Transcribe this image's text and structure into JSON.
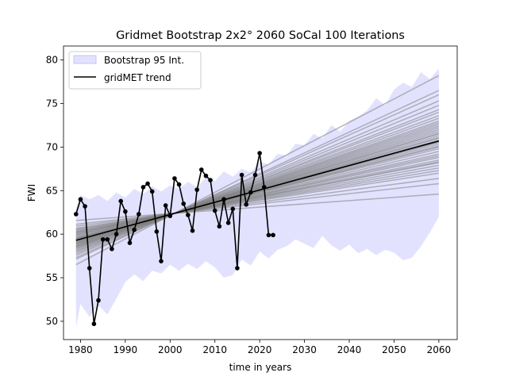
{
  "chart_data": {
    "type": "line",
    "title": "Gridmet Bootstrap 2x2° 2060 SoCal 100 Iterations",
    "xlabel": "time in years",
    "ylabel": "FWI",
    "xlim": [
      1976.2,
      2064.1
    ],
    "ylim": [
      47.9,
      81.6
    ],
    "xticks": [
      1980,
      1990,
      2000,
      2010,
      2020,
      2030,
      2040,
      2050,
      2060
    ],
    "yticks": [
      50,
      55,
      60,
      65,
      70,
      75,
      80
    ],
    "grid": false,
    "legend": {
      "placement": "upper-left",
      "entries": [
        {
          "label": "Bootstrap 95 Int.",
          "kind": "band",
          "color": "#e2e2ff"
        },
        {
          "label": "gridMET trend",
          "kind": "line",
          "color": "#000000"
        }
      ]
    },
    "band": {
      "x": [
        1979,
        1980,
        1982,
        1984,
        1986,
        1988,
        1990,
        1992,
        1994,
        1996,
        1998,
        2000,
        2002,
        2004,
        2006,
        2008,
        2010,
        2012,
        2014,
        2016,
        2018,
        2020,
        2022,
        2024,
        2026,
        2028,
        2030,
        2032,
        2034,
        2036,
        2038,
        2040,
        2042,
        2044,
        2046,
        2048,
        2050,
        2052,
        2054,
        2056,
        2058,
        2060
      ],
      "upper": [
        63.0,
        64.5,
        64.0,
        64.5,
        63.8,
        64.8,
        64.2,
        65.2,
        64.6,
        65.5,
        64.9,
        65.6,
        65.2,
        66.0,
        65.4,
        66.5,
        66.1,
        67.2,
        66.6,
        67.5,
        67.1,
        68.3,
        68.0,
        69.2,
        69.0,
        70.4,
        70.2,
        71.5,
        71.0,
        72.5,
        71.8,
        73.0,
        73.5,
        74.2,
        75.6,
        74.8,
        76.6,
        77.4,
        76.9,
        78.6,
        77.8,
        79.0
      ],
      "lower": [
        49.3,
        52.0,
        50.5,
        51.8,
        50.8,
        52.6,
        54.5,
        55.4,
        54.6,
        55.8,
        55.5,
        56.5,
        55.8,
        56.6,
        56.0,
        56.9,
        56.2,
        55.0,
        55.3,
        57.1,
        56.4,
        58.0,
        57.2,
        58.2,
        58.6,
        59.4,
        58.9,
        58.4,
        59.8,
        58.7,
        58.1,
        58.8,
        57.8,
        58.3,
        57.6,
        58.2,
        57.9,
        57.0,
        57.3,
        58.6,
        60.2,
        62.0
      ]
    },
    "bootstrap_endpoints_2060": [
      64.6,
      65.8,
      66.4,
      67.0,
      67.3,
      67.6,
      67.9,
      68.2,
      68.3,
      68.5,
      68.8,
      69.0,
      69.2,
      69.5,
      69.8,
      70.0,
      70.1,
      70.3,
      70.5,
      70.6,
      70.8,
      71.0,
      71.1,
      71.3,
      71.5,
      71.6,
      71.8,
      72.0,
      72.2,
      72.4,
      72.6,
      72.8,
      73.0,
      73.3,
      73.6,
      74.0,
      74.3,
      74.8,
      75.3,
      76.0,
      76.5,
      78.2
    ],
    "series": [
      {
        "name": "gridMET trend",
        "style": "line",
        "color": "#000000",
        "x": [
          1979,
          2060
        ],
        "values": [
          59.3,
          70.7
        ]
      },
      {
        "style": "line-markers",
        "color": "#000000",
        "x": [
          1979,
          1980,
          1981,
          1982,
          1983,
          1984,
          1985,
          1986,
          1987,
          1988,
          1989,
          1990,
          1991,
          1992,
          1993,
          1994,
          1995,
          1996,
          1997,
          1998,
          1999,
          2000,
          2001,
          2002,
          2003,
          2004,
          2005,
          2006,
          2007,
          2008,
          2009,
          2010,
          2011,
          2012,
          2013,
          2014,
          2015,
          2016,
          2017,
          2018,
          2019,
          2020,
          2021,
          2022,
          2023
        ],
        "values": [
          62.3,
          64.0,
          63.2,
          56.1,
          49.7,
          52.4,
          59.4,
          59.4,
          58.3,
          60.0,
          63.8,
          62.6,
          59.0,
          60.5,
          62.3,
          65.4,
          65.8,
          64.9,
          60.3,
          56.9,
          63.3,
          62.1,
          66.4,
          65.7,
          63.5,
          62.2,
          60.4,
          65.1,
          67.4,
          66.7,
          66.2,
          62.7,
          60.9,
          64.0,
          61.3,
          62.9,
          56.1,
          66.8,
          63.4,
          64.8,
          66.8,
          69.3,
          65.4,
          59.9,
          59.9
        ]
      }
    ]
  }
}
